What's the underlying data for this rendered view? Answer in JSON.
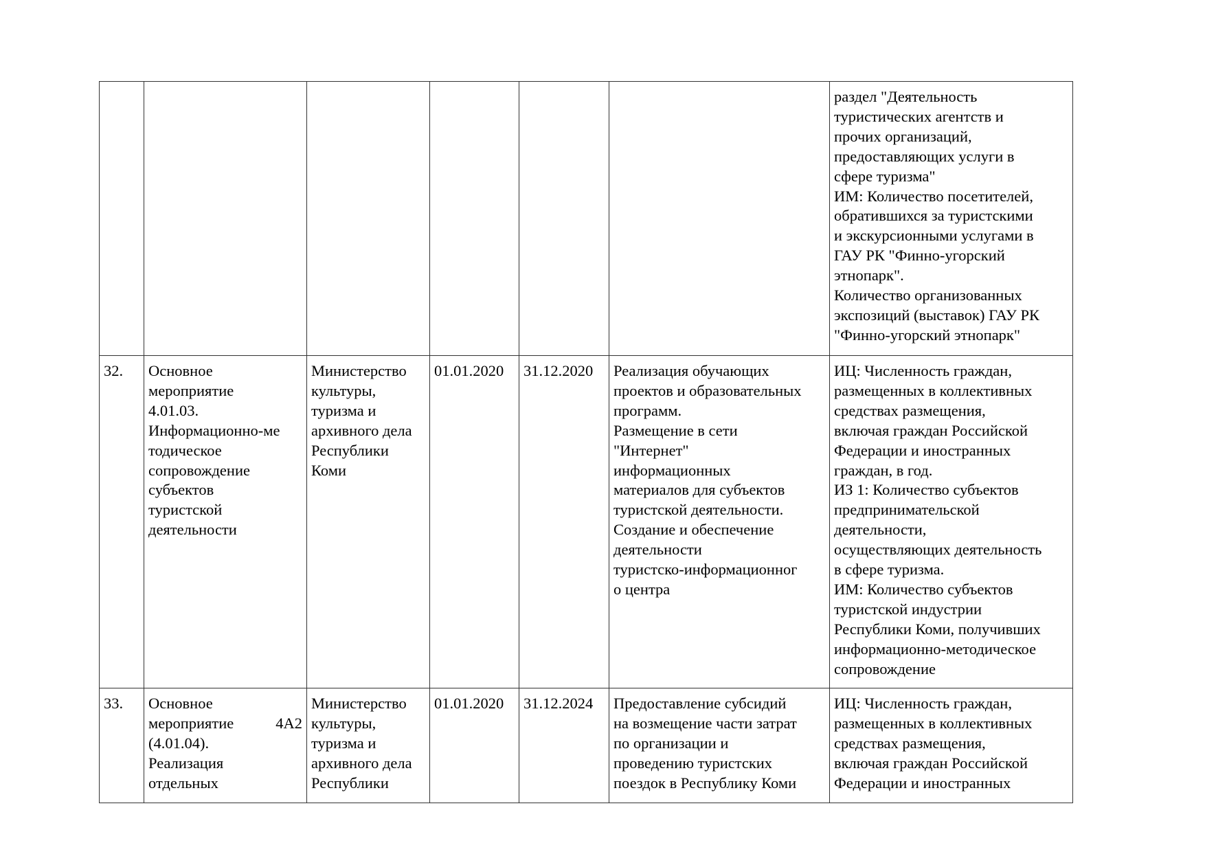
{
  "table": {
    "rows": [
      {
        "num": "",
        "name": "",
        "executor": "",
        "start": "",
        "end": "",
        "result": "",
        "indicators": "раздел \"Деятельность\nтуристических агентств и\nпрочих организаций,\nпредоставляющих услуги в\nсфере туризма\"\nИМ: Количество посетителей,\nобратившихся за туристскими\nи экскурсионными услугами в\nГАУ РК \"Финно-угорский\nэтнопарк\".\nКоличество организованных\nэкспозиций (выставок) ГАУ РК\n\"Финно-угорский этнопарк\""
      },
      {
        "num": "32.",
        "name": "Основное\nмероприятие\n4.01.03.\nИнформационно-ме\nтодическое\nсопровождение\nсубъектов\nтуристской\nдеятельности",
        "executor": "Министерство\nкультуры,\nтуризма и\nархивного дела\nРеспублики\nКоми",
        "start": "01.01.2020",
        "end": "31.12.2020",
        "result": "Реализация обучающих\nпроектов и образовательных\nпрограмм.\nРазмещение в сети\n\"Интернет\"\nинформационных\nматериалов для субъектов\nтуристской деятельности.\nСоздание и обеспечение\nдеятельности\nтуристско-информационног\nо центра",
        "indicators": "ИЦ: Численность граждан,\nразмещенных в коллективных\nсредствах размещения,\nвключая граждан Российской\nФедерации и иностранных\nграждан, в год.\nИЗ 1: Количество субъектов\nпредпринимательской\nдеятельности,\nосуществляющих деятельность\nв сфере туризма.\nИМ: Количество субъектов\nтуристской индустрии\nРеспублики Коми, получивших\nинформационно-методическое\nсопровождение"
      },
      {
        "num": "33.",
        "name_line1": "Основное",
        "name_line2a": "мероприятие",
        "name_line2b": "4А2",
        "name_rest": "(4.01.04).\nРеализация\nотдельных",
        "executor": "Министерство\nкультуры,\nтуризма и\nархивного дела\nРеспублики",
        "start": "01.01.2020",
        "end": "31.12.2024",
        "result": "Предоставление субсидий\nна возмещение части затрат\nпо организации и\nпроведению туристских\nпоездок в Республику Коми",
        "indicators": "ИЦ: Численность граждан,\nразмещенных в коллективных\nсредствах размещения,\nвключая граждан Российской\nФедерации и иностранных"
      }
    ]
  }
}
